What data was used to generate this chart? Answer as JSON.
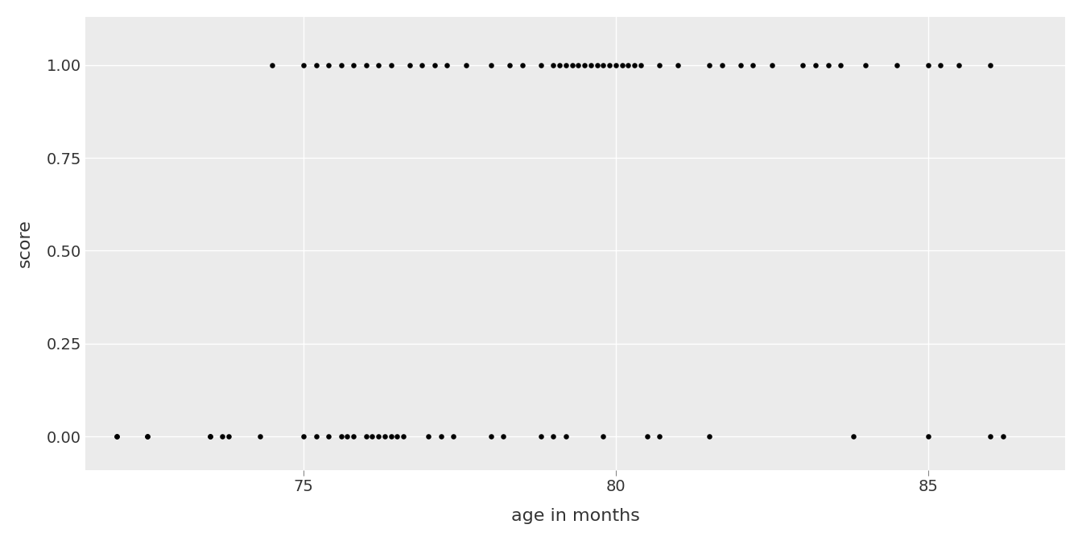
{
  "title": "",
  "xlabel": "age in months",
  "ylabel": "score",
  "xlim": [
    71.5,
    87.2
  ],
  "ylim": [
    -0.09,
    1.13
  ],
  "yticks": [
    0.0,
    0.25,
    0.5,
    0.75,
    1.0
  ],
  "xticks": [
    75,
    80,
    85
  ],
  "background_color": "#ffffff",
  "panel_background": "#ebebeb",
  "grid_color": "#ffffff",
  "point_color": "#000000",
  "point_size": 22,
  "x": [
    72.0,
    72.5,
    73.5,
    73.7,
    74.5,
    75.0,
    75.2,
    75.4,
    75.6,
    75.8,
    76.0,
    76.2,
    76.4,
    76.7,
    76.9,
    77.1,
    77.3,
    77.6,
    78.0,
    78.3,
    78.5,
    78.8,
    79.0,
    79.1,
    79.2,
    79.3,
    79.4,
    79.5,
    79.6,
    79.7,
    79.8,
    79.9,
    80.0,
    80.1,
    80.2,
    80.3,
    80.4,
    80.7,
    81.0,
    81.5,
    81.7,
    82.0,
    82.2,
    82.5,
    83.0,
    83.2,
    83.4,
    83.6,
    84.0,
    84.5,
    85.0,
    85.2,
    85.5,
    86.0,
    72.0,
    72.5,
    73.5,
    73.8,
    74.3,
    75.0,
    75.2,
    75.4,
    75.6,
    75.7,
    75.8,
    76.0,
    76.1,
    76.2,
    76.3,
    76.4,
    76.5,
    76.6,
    77.0,
    77.2,
    77.4,
    78.0,
    78.2,
    78.8,
    79.0,
    79.2,
    79.8,
    80.5,
    80.7,
    81.5,
    83.8,
    85.0,
    86.0,
    86.2
  ],
  "y": [
    0,
    0,
    0,
    0,
    1,
    1,
    1,
    1,
    1,
    1,
    1,
    1,
    1,
    1,
    1,
    1,
    1,
    1,
    1,
    1,
    1,
    1,
    1,
    1,
    1,
    1,
    1,
    1,
    1,
    1,
    1,
    1,
    1,
    1,
    1,
    1,
    1,
    1,
    1,
    1,
    1,
    1,
    1,
    1,
    1,
    1,
    1,
    1,
    1,
    1,
    1,
    1,
    1,
    1,
    0,
    0,
    0,
    0,
    0,
    0,
    0,
    0,
    0,
    0,
    0,
    0,
    0,
    0,
    0,
    0,
    0,
    0,
    0,
    0,
    0,
    0,
    0,
    0,
    0,
    0,
    0,
    0,
    0,
    0,
    0,
    0,
    0,
    0
  ]
}
